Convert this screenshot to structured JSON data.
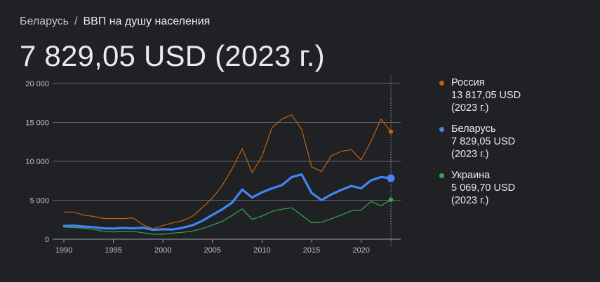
{
  "breadcrumb": {
    "parent": "Беларусь",
    "separator": "/",
    "current": "ВВП на душу населения"
  },
  "headline": "7 829,05 USD (2023 г.)",
  "legend": [
    {
      "name": "Россия",
      "value": "13 817,05 USD",
      "year": "(2023 г.)",
      "color": "#c0620f"
    },
    {
      "name": "Беларусь",
      "value": "7 829,05 USD",
      "year": "(2023 г.)",
      "color": "#4285f4"
    },
    {
      "name": "Украина",
      "value": "5 069,70 USD",
      "year": "(2023 г.)",
      "color": "#34a853"
    }
  ],
  "chart_data": {
    "type": "line",
    "x": [
      1990,
      1991,
      1992,
      1993,
      1994,
      1995,
      1996,
      1997,
      1998,
      1999,
      2000,
      2001,
      2002,
      2003,
      2004,
      2005,
      2006,
      2007,
      2008,
      2009,
      2010,
      2011,
      2012,
      2013,
      2014,
      2015,
      2016,
      2017,
      2018,
      2019,
      2020,
      2021,
      2022,
      2023
    ],
    "x_ticks": [
      "1990",
      "1995",
      "2000",
      "2005",
      "2010",
      "2015",
      "2020"
    ],
    "x_tick_values": [
      1990,
      1995,
      2000,
      2005,
      2010,
      2015,
      2020
    ],
    "y_ticks": [
      "0",
      "5 000",
      "10 000",
      "15 000",
      "20 000"
    ],
    "y_tick_values": [
      0,
      5000,
      10000,
      15000,
      20000
    ],
    "xlim": [
      1990,
      2023
    ],
    "ylim": [
      0,
      20000
    ],
    "grid": true,
    "highlight_x": 2023,
    "series": [
      {
        "name": "Россия",
        "color": "#c0620f",
        "emphasis": false,
        "values": [
          3490,
          3490,
          3100,
          2930,
          2660,
          2670,
          2640,
          2740,
          1830,
          1330,
          1770,
          2100,
          2380,
          2980,
          4100,
          5320,
          6920,
          9100,
          11630,
          8560,
          10670,
          14310,
          15420,
          15970,
          14100,
          9310,
          8700,
          10720,
          11290,
          11500,
          10170,
          12590,
          15440,
          13817
        ]
      },
      {
        "name": "Беларусь",
        "color": "#4285f4",
        "emphasis": true,
        "values": [
          1700,
          1750,
          1620,
          1550,
          1400,
          1370,
          1450,
          1400,
          1480,
          1200,
          1280,
          1250,
          1480,
          1800,
          2380,
          3130,
          3850,
          4740,
          6380,
          5350,
          6030,
          6520,
          6940,
          7980,
          8320,
          5950,
          5020,
          5760,
          6330,
          6840,
          6540,
          7560,
          7990,
          7829
        ]
      },
      {
        "name": "Украина",
        "color": "#34a853",
        "emphasis": false,
        "values": [
          1570,
          1490,
          1420,
          1260,
          1010,
          940,
          1000,
          1000,
          830,
          640,
          640,
          780,
          880,
          1050,
          1370,
          1830,
          2300,
          3070,
          3890,
          2550,
          2980,
          3570,
          3860,
          4030,
          3100,
          2120,
          2190,
          2640,
          3100,
          3660,
          3750,
          4840,
          4300,
          5070
        ]
      }
    ]
  }
}
